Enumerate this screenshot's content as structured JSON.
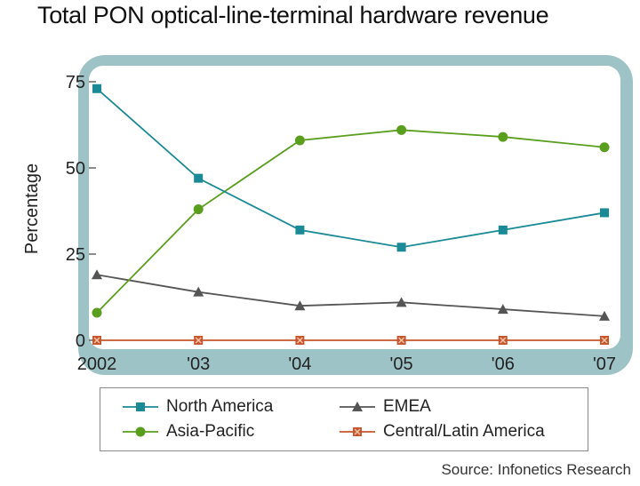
{
  "chart_data": {
    "type": "line",
    "title": "Total PON optical-line-terminal hardware revenue",
    "ylabel": "Percentage",
    "xlabel": "",
    "categories": [
      "2002",
      "'03",
      "'04",
      "'05",
      "'06",
      "'07"
    ],
    "yticks": [
      "75",
      "50",
      "25",
      "0"
    ],
    "ylim": [
      0,
      75
    ],
    "grid": false,
    "legend_position": "bottom",
    "series": [
      {
        "name": "North America",
        "values": [
          73,
          47,
          32,
          27,
          32,
          37
        ],
        "color": "#1a8a96",
        "marker": "square"
      },
      {
        "name": "EMEA",
        "values": [
          19,
          14,
          10,
          11,
          9,
          7
        ],
        "color": "#555555",
        "marker": "triangle"
      },
      {
        "name": "Asia-Pacific",
        "values": [
          8,
          38,
          58,
          61,
          59,
          56
        ],
        "color": "#5a9e1e",
        "marker": "circle"
      },
      {
        "name": "Central/Latin America",
        "values": [
          0,
          0,
          0,
          0,
          0,
          0
        ],
        "color": "#c7552c",
        "marker": "x-square"
      }
    ],
    "source": "Source: Infonetics Research"
  },
  "colors": {
    "frame": "#9ec3c6",
    "plot_background": "#ffffff"
  }
}
